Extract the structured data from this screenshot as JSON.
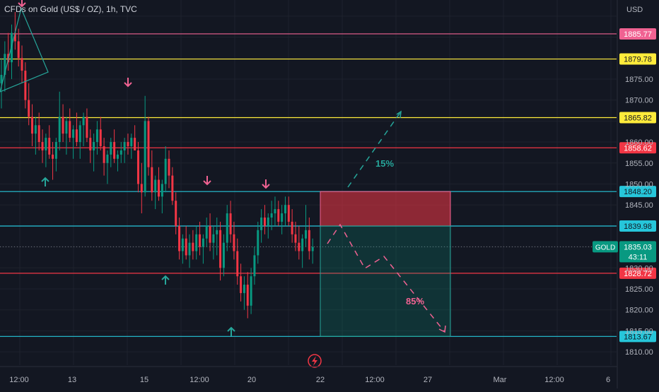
{
  "header": {
    "title": "CFDs on Gold (US$ / OZ), 1h, TVC"
  },
  "price_axis": {
    "currency": "USD",
    "ticks": [
      "1875.00",
      "1870.00",
      "1860.00",
      "1855.00",
      "1850.00",
      "1845.00",
      "1830.00",
      "1825.00",
      "1820.00",
      "1815.00",
      "1810.00"
    ]
  },
  "time_axis": {
    "ticks": [
      "12:00",
      "13",
      "15",
      "12:00",
      "20",
      "22",
      "12:00",
      "27",
      "Mar",
      "12:00",
      "6"
    ]
  },
  "levels": [
    {
      "label": "1885.77",
      "value": 1885.77,
      "color": "#f06292"
    },
    {
      "label": "1879.78",
      "value": 1879.78,
      "color": "#ffeb3b"
    },
    {
      "label": "1865.82",
      "value": 1865.82,
      "color": "#ffeb3b"
    },
    {
      "label": "1858.62",
      "value": 1858.62,
      "color": "#f23645"
    },
    {
      "label": "1848.20",
      "value": 1848.2,
      "color": "#26c6da"
    },
    {
      "label": "1839.98",
      "value": 1839.98,
      "color": "#26c6da"
    },
    {
      "label": "1828.72",
      "value": 1828.72,
      "color": "#f23645"
    },
    {
      "label": "1813.67",
      "value": 1813.67,
      "color": "#26c6da"
    }
  ],
  "current_price": {
    "symbol": "GOLD",
    "value": "1835.03",
    "countdown": "43:11",
    "color": "#089981"
  },
  "scenarios": {
    "up_label": "15%",
    "down_label": "85%"
  },
  "colors": {
    "bull": "#089981",
    "bear": "#f23645",
    "arrow_up": "#26a69a",
    "arrow_down": "#f06292"
  },
  "chart_data": {
    "type": "candlestick",
    "ylim": [
      1808,
      1893
    ],
    "bars": [
      [
        1874,
        1880,
        1868,
        1876
      ],
      [
        1876,
        1884,
        1872,
        1881
      ],
      [
        1881,
        1886,
        1877,
        1879
      ],
      [
        1879,
        1888,
        1875,
        1886
      ],
      [
        1886,
        1891,
        1882,
        1884
      ],
      [
        1884,
        1887,
        1878,
        1880
      ],
      [
        1880,
        1883,
        1874,
        1877
      ],
      [
        1877,
        1879,
        1868,
        1870
      ],
      [
        1870,
        1874,
        1864,
        1866
      ],
      [
        1866,
        1869,
        1859,
        1862
      ],
      [
        1862,
        1866,
        1857,
        1864
      ],
      [
        1864,
        1867,
        1858,
        1860
      ],
      [
        1860,
        1863,
        1855,
        1858
      ],
      [
        1858,
        1862,
        1854,
        1861
      ],
      [
        1861,
        1864,
        1856,
        1857
      ],
      [
        1857,
        1860,
        1851,
        1856
      ],
      [
        1856,
        1861,
        1853,
        1860
      ],
      [
        1860,
        1872,
        1858,
        1866
      ],
      [
        1866,
        1869,
        1860,
        1862
      ],
      [
        1862,
        1866,
        1857,
        1865
      ],
      [
        1865,
        1868,
        1860,
        1861
      ],
      [
        1861,
        1864,
        1856,
        1863
      ],
      [
        1863,
        1867,
        1859,
        1860
      ],
      [
        1860,
        1865,
        1856,
        1864
      ],
      [
        1864,
        1867,
        1859,
        1866
      ],
      [
        1866,
        1868,
        1860,
        1861
      ],
      [
        1861,
        1863,
        1855,
        1858
      ],
      [
        1858,
        1862,
        1853,
        1860
      ],
      [
        1860,
        1865,
        1857,
        1863
      ],
      [
        1863,
        1866,
        1858,
        1859
      ],
      [
        1859,
        1861,
        1852,
        1855
      ],
      [
        1855,
        1858,
        1850,
        1857
      ],
      [
        1857,
        1861,
        1854,
        1860
      ],
      [
        1860,
        1863,
        1855,
        1856
      ],
      [
        1856,
        1858,
        1853,
        1857
      ],
      [
        1857,
        1860,
        1855,
        1858
      ],
      [
        1858,
        1861,
        1855,
        1860
      ],
      [
        1860,
        1862,
        1857,
        1859
      ],
      [
        1859,
        1862,
        1856,
        1861
      ],
      [
        1861,
        1864,
        1858,
        1858
      ],
      [
        1858,
        1860,
        1848,
        1850
      ],
      [
        1850,
        1855,
        1843,
        1848
      ],
      [
        1848,
        1871,
        1847,
        1865
      ],
      [
        1865,
        1866,
        1852,
        1854
      ],
      [
        1854,
        1858,
        1846,
        1848
      ],
      [
        1848,
        1852,
        1844,
        1851
      ],
      [
        1851,
        1854,
        1846,
        1847
      ],
      [
        1847,
        1851,
        1843,
        1850
      ],
      [
        1850,
        1859,
        1848,
        1856
      ],
      [
        1856,
        1858,
        1849,
        1852
      ],
      [
        1852,
        1854,
        1845,
        1846
      ],
      [
        1846,
        1848,
        1838,
        1840
      ],
      [
        1840,
        1842,
        1832,
        1834
      ],
      [
        1834,
        1838,
        1831,
        1837
      ],
      [
        1837,
        1840,
        1832,
        1833
      ],
      [
        1833,
        1838,
        1830,
        1836
      ],
      [
        1836,
        1839,
        1832,
        1834
      ],
      [
        1834,
        1840,
        1832,
        1838
      ],
      [
        1838,
        1841,
        1833,
        1835
      ],
      [
        1835,
        1838,
        1831,
        1837
      ],
      [
        1837,
        1842,
        1835,
        1840
      ],
      [
        1840,
        1843,
        1834,
        1836
      ],
      [
        1836,
        1840,
        1832,
        1838
      ],
      [
        1838,
        1842,
        1833,
        1839
      ],
      [
        1839,
        1841,
        1827,
        1830
      ],
      [
        1830,
        1838,
        1828,
        1836
      ],
      [
        1836,
        1845,
        1834,
        1843
      ],
      [
        1843,
        1846,
        1836,
        1838
      ],
      [
        1838,
        1841,
        1832,
        1834
      ],
      [
        1834,
        1837,
        1826,
        1828
      ],
      [
        1828,
        1831,
        1822,
        1824
      ],
      [
        1824,
        1828,
        1820,
        1826
      ],
      [
        1826,
        1829,
        1818,
        1821
      ],
      [
        1821,
        1830,
        1819,
        1828
      ],
      [
        1828,
        1835,
        1826,
        1833
      ],
      [
        1833,
        1841,
        1831,
        1839
      ],
      [
        1839,
        1844,
        1836,
        1842
      ],
      [
        1842,
        1845,
        1838,
        1840
      ],
      [
        1840,
        1843,
        1837,
        1842
      ],
      [
        1842,
        1846,
        1839,
        1843
      ],
      [
        1843,
        1847,
        1840,
        1844
      ],
      [
        1844,
        1846,
        1840,
        1841
      ],
      [
        1841,
        1845,
        1838,
        1843
      ],
      [
        1843,
        1847,
        1840,
        1845
      ],
      [
        1845,
        1847,
        1840,
        1841
      ],
      [
        1841,
        1844,
        1836,
        1838
      ],
      [
        1838,
        1841,
        1834,
        1836
      ],
      [
        1836,
        1840,
        1832,
        1834
      ],
      [
        1834,
        1838,
        1830,
        1837
      ],
      [
        1837,
        1845,
        1835,
        1839
      ],
      [
        1839,
        1842,
        1832,
        1834
      ],
      [
        1834,
        1837,
        1831,
        1835
      ]
    ]
  }
}
